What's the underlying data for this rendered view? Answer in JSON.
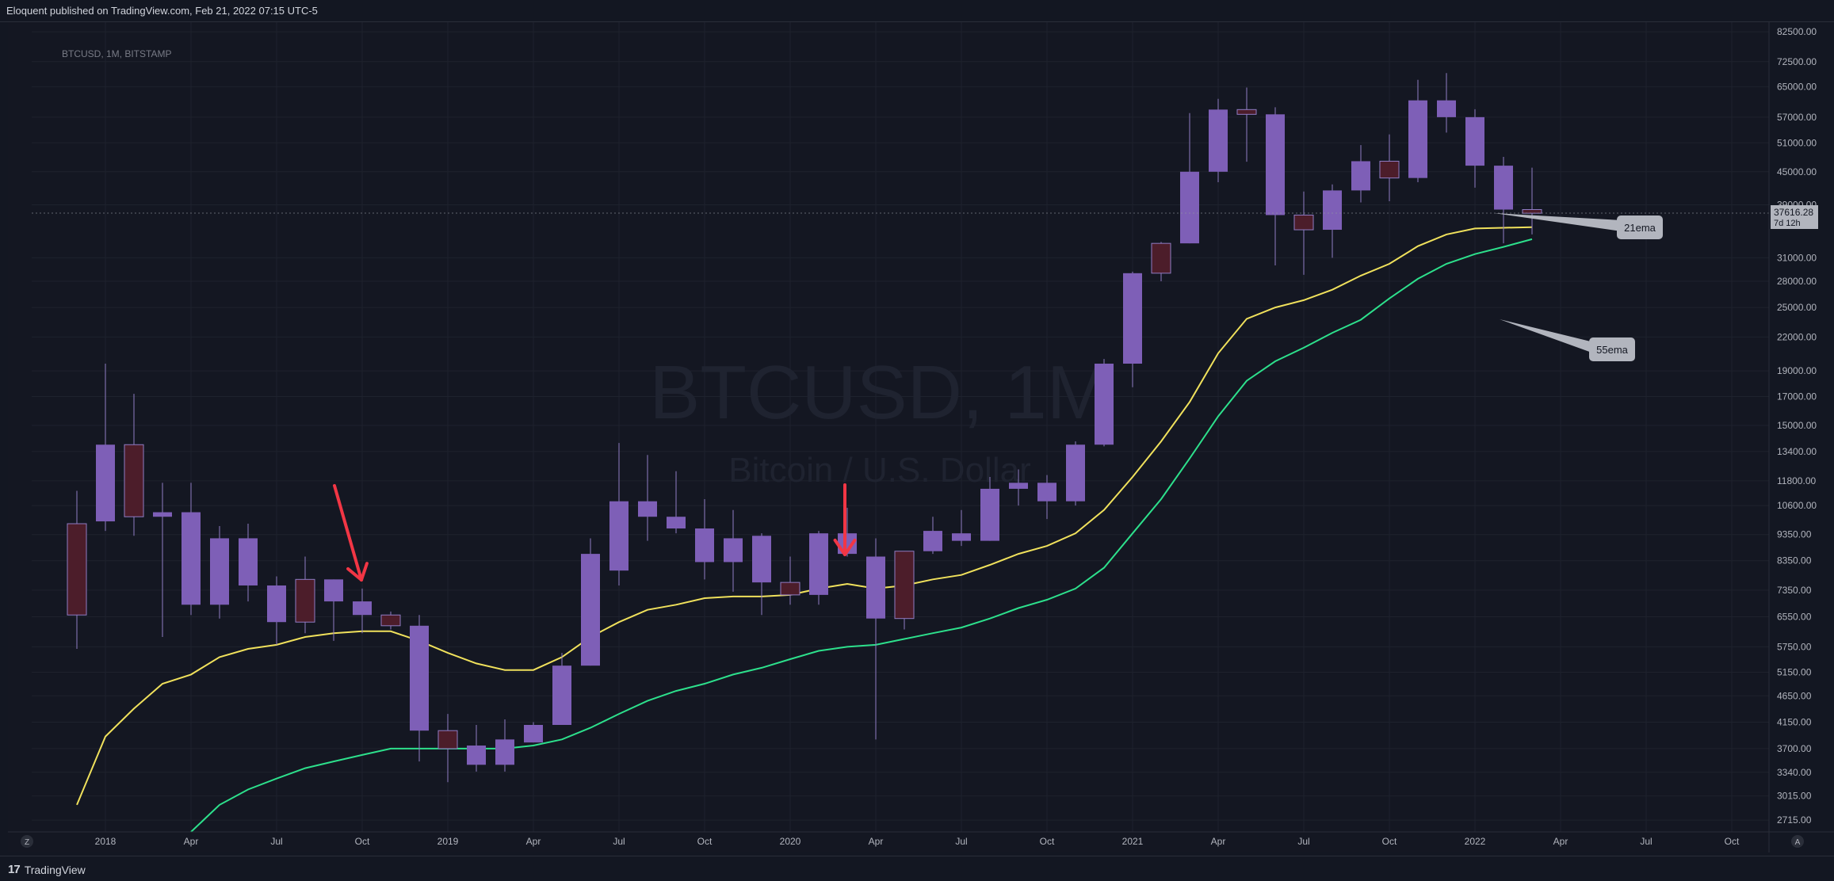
{
  "header": {
    "published": "Eloquent published on TradingView.com, Feb 21, 2022 07:15 UTC-5"
  },
  "footer": {
    "brand": "TradingView"
  },
  "chart_data": {
    "type": "candlestick",
    "symbol_info": "BTCUSD, 1M, BITSTAMP",
    "watermark_line1": "BTCUSD, 1M",
    "watermark_line2": "Bitcoin / U.S. Dollar",
    "y_scale": "log",
    "ylim": [
      2580,
      86000
    ],
    "y_ticks": [
      "82500.00",
      "72500.00",
      "65000.00",
      "57000.00",
      "51000.00",
      "45000.00",
      "39000.00",
      "31000.00",
      "28000.00",
      "25000.00",
      "22000.00",
      "19000.00",
      "17000.00",
      "15000.00",
      "13400.00",
      "11800.00",
      "10600.00",
      "9350.00",
      "8350.00",
      "7350.00",
      "6550.00",
      "5750.00",
      "5150.00",
      "4650.00",
      "4150.00",
      "3700.00",
      "3340.00",
      "3015.00",
      "2715.00"
    ],
    "x_ticks": [
      "2018",
      "Apr",
      "Jul",
      "Oct",
      "2019",
      "Apr",
      "Jul",
      "Oct",
      "2020",
      "Apr",
      "Jul",
      "Oct",
      "2021",
      "Apr",
      "Jul",
      "Oct",
      "2022",
      "Apr",
      "Jul",
      "Oct"
    ],
    "x_tick_months": [
      0,
      3,
      6,
      9,
      12,
      15,
      18,
      21,
      24,
      27,
      30,
      33,
      36,
      39,
      42,
      45,
      48,
      51,
      54,
      57
    ],
    "candles": [
      {
        "m": -1,
        "o": 9800,
        "h": 11300,
        "l": 5700,
        "c": 6600
      },
      {
        "m": 0,
        "o": 9900,
        "h": 19600,
        "l": 9500,
        "c": 13800
      },
      {
        "m": 1,
        "o": 13800,
        "h": 17200,
        "l": 9300,
        "c": 10100
      },
      {
        "m": 2,
        "o": 10100,
        "h": 11700,
        "l": 6000,
        "c": 10300
      },
      {
        "m": 3,
        "o": 6900,
        "h": 11700,
        "l": 6600,
        "c": 10300
      },
      {
        "m": 4,
        "o": 6900,
        "h": 9700,
        "l": 6500,
        "c": 9200
      },
      {
        "m": 5,
        "o": 7500,
        "h": 9800,
        "l": 7000,
        "c": 9200
      },
      {
        "m": 6,
        "o": 6400,
        "h": 7800,
        "l": 5800,
        "c": 7500
      },
      {
        "m": 7,
        "o": 7700,
        "h": 8500,
        "l": 6100,
        "c": 6400
      },
      {
        "m": 8,
        "o": 7000,
        "h": 7700,
        "l": 5900,
        "c": 7700
      },
      {
        "m": 9,
        "o": 6600,
        "h": 7400,
        "l": 6100,
        "c": 7000
      },
      {
        "m": 10,
        "o": 6600,
        "h": 6700,
        "l": 6200,
        "c": 6300
      },
      {
        "m": 11,
        "o": 4000,
        "h": 6600,
        "l": 3500,
        "c": 6300
      },
      {
        "m": 12,
        "o": 4000,
        "h": 4300,
        "l": 3200,
        "c": 3700
      },
      {
        "m": 13,
        "o": 3450,
        "h": 4100,
        "l": 3350,
        "c": 3750
      },
      {
        "m": 14,
        "o": 3450,
        "h": 4200,
        "l": 3350,
        "c": 3850
      },
      {
        "m": 15,
        "o": 3800,
        "h": 4150,
        "l": 3800,
        "c": 4100
      },
      {
        "m": 16,
        "o": 4100,
        "h": 5600,
        "l": 4100,
        "c": 5300
      },
      {
        "m": 17,
        "o": 5300,
        "h": 9200,
        "l": 5300,
        "c": 8600
      },
      {
        "m": 18,
        "o": 8000,
        "h": 13900,
        "l": 7500,
        "c": 10800
      },
      {
        "m": 19,
        "o": 10100,
        "h": 13200,
        "l": 9100,
        "c": 10800
      },
      {
        "m": 20,
        "o": 9600,
        "h": 12300,
        "l": 9400,
        "c": 10100
      },
      {
        "m": 21,
        "o": 8300,
        "h": 10900,
        "l": 7700,
        "c": 9600
      },
      {
        "m": 22,
        "o": 8300,
        "h": 10400,
        "l": 7300,
        "c": 9200
      },
      {
        "m": 23,
        "o": 7600,
        "h": 9400,
        "l": 6600,
        "c": 9300
      },
      {
        "m": 24,
        "o": 7600,
        "h": 8500,
        "l": 6900,
        "c": 7200
      },
      {
        "m": 25,
        "o": 7200,
        "h": 9500,
        "l": 6900,
        "c": 9400
      },
      {
        "m": 26,
        "o": 8600,
        "h": 10500,
        "l": 8500,
        "c": 9400
      },
      {
        "m": 27,
        "o": 6500,
        "h": 9200,
        "l": 3850,
        "c": 8500
      },
      {
        "m": 28,
        "o": 8700,
        "h": 8700,
        "l": 6200,
        "c": 6500
      },
      {
        "m": 29,
        "o": 8700,
        "h": 10100,
        "l": 8600,
        "c": 9500
      },
      {
        "m": 30,
        "o": 9100,
        "h": 10400,
        "l": 8900,
        "c": 9400
      },
      {
        "m": 31,
        "o": 9100,
        "h": 12000,
        "l": 9100,
        "c": 11400
      },
      {
        "m": 32,
        "o": 11400,
        "h": 12400,
        "l": 10600,
        "c": 11700
      },
      {
        "m": 33,
        "o": 10800,
        "h": 12100,
        "l": 10000,
        "c": 11700
      },
      {
        "m": 34,
        "o": 10800,
        "h": 14000,
        "l": 10600,
        "c": 13800
      },
      {
        "m": 35,
        "o": 13800,
        "h": 20000,
        "l": 13700,
        "c": 19600
      },
      {
        "m": 36,
        "o": 19600,
        "h": 29200,
        "l": 17700,
        "c": 29000
      },
      {
        "m": 37,
        "o": 33000,
        "h": 33200,
        "l": 28000,
        "c": 29000
      },
      {
        "m": 38,
        "o": 33000,
        "h": 58000,
        "l": 33000,
        "c": 45000
      },
      {
        "m": 39,
        "o": 45000,
        "h": 61700,
        "l": 43000,
        "c": 58900
      },
      {
        "m": 40,
        "o": 58900,
        "h": 64800,
        "l": 47000,
        "c": 57700
      },
      {
        "m": 41,
        "o": 37300,
        "h": 59500,
        "l": 30000,
        "c": 57700
      },
      {
        "m": 42,
        "o": 37300,
        "h": 41300,
        "l": 28800,
        "c": 35000
      },
      {
        "m": 43,
        "o": 35000,
        "h": 42600,
        "l": 31000,
        "c": 41500
      },
      {
        "m": 44,
        "o": 41500,
        "h": 50500,
        "l": 39400,
        "c": 47100
      },
      {
        "m": 45,
        "o": 47100,
        "h": 52900,
        "l": 39600,
        "c": 43800
      },
      {
        "m": 46,
        "o": 43800,
        "h": 67000,
        "l": 43000,
        "c": 61300
      },
      {
        "m": 47,
        "o": 57000,
        "h": 69000,
        "l": 53300,
        "c": 61300
      },
      {
        "m": 48,
        "o": 46200,
        "h": 59000,
        "l": 42000,
        "c": 57000
      },
      {
        "m": 49,
        "o": 38200,
        "h": 48000,
        "l": 33000,
        "c": 46200
      },
      {
        "m": 50,
        "o": 38200,
        "h": 45800,
        "l": 34300,
        "c": 37600
      }
    ],
    "series": [
      {
        "name": "21ema",
        "color": "#f0e15c",
        "points": [
          [
            -1,
            2900
          ],
          [
            0,
            3900
          ],
          [
            1,
            4400
          ],
          [
            2,
            4900
          ],
          [
            3,
            5100
          ],
          [
            4,
            5500
          ],
          [
            5,
            5700
          ],
          [
            6,
            5800
          ],
          [
            7,
            6000
          ],
          [
            8,
            6100
          ],
          [
            9,
            6150
          ],
          [
            10,
            6150
          ],
          [
            11,
            5900
          ],
          [
            12,
            5600
          ],
          [
            13,
            5350
          ],
          [
            14,
            5200
          ],
          [
            15,
            5200
          ],
          [
            16,
            5500
          ],
          [
            17,
            6000
          ],
          [
            18,
            6400
          ],
          [
            19,
            6750
          ],
          [
            20,
            6900
          ],
          [
            21,
            7100
          ],
          [
            22,
            7150
          ],
          [
            23,
            7150
          ],
          [
            24,
            7200
          ],
          [
            25,
            7400
          ],
          [
            26,
            7550
          ],
          [
            27,
            7400
          ],
          [
            28,
            7500
          ],
          [
            29,
            7700
          ],
          [
            30,
            7850
          ],
          [
            31,
            8200
          ],
          [
            32,
            8600
          ],
          [
            33,
            8900
          ],
          [
            34,
            9400
          ],
          [
            35,
            10400
          ],
          [
            36,
            12000
          ],
          [
            37,
            14000
          ],
          [
            38,
            16600
          ],
          [
            39,
            20500
          ],
          [
            40,
            23800
          ],
          [
            41,
            25000
          ],
          [
            42,
            25800
          ],
          [
            43,
            27000
          ],
          [
            44,
            28700
          ],
          [
            45,
            30200
          ],
          [
            46,
            32600
          ],
          [
            47,
            34300
          ],
          [
            48,
            35200
          ],
          [
            49,
            35300
          ],
          [
            50,
            35400
          ]
        ]
      },
      {
        "name": "55ema",
        "color": "#2de08c",
        "points": [
          [
            3,
            2580
          ],
          [
            4,
            2900
          ],
          [
            5,
            3100
          ],
          [
            6,
            3250
          ],
          [
            7,
            3400
          ],
          [
            8,
            3500
          ],
          [
            9,
            3600
          ],
          [
            10,
            3700
          ],
          [
            11,
            3700
          ],
          [
            12,
            3700
          ],
          [
            13,
            3700
          ],
          [
            14,
            3700
          ],
          [
            15,
            3750
          ],
          [
            16,
            3850
          ],
          [
            17,
            4050
          ],
          [
            18,
            4300
          ],
          [
            19,
            4550
          ],
          [
            20,
            4750
          ],
          [
            21,
            4900
          ],
          [
            22,
            5100
          ],
          [
            23,
            5250
          ],
          [
            24,
            5450
          ],
          [
            25,
            5650
          ],
          [
            26,
            5750
          ],
          [
            27,
            5800
          ],
          [
            28,
            5950
          ],
          [
            29,
            6100
          ],
          [
            30,
            6250
          ],
          [
            31,
            6500
          ],
          [
            32,
            6800
          ],
          [
            33,
            7050
          ],
          [
            34,
            7400
          ],
          [
            35,
            8100
          ],
          [
            36,
            9400
          ],
          [
            37,
            10900
          ],
          [
            38,
            13000
          ],
          [
            39,
            15600
          ],
          [
            40,
            18200
          ],
          [
            41,
            19800
          ],
          [
            42,
            21000
          ],
          [
            43,
            22400
          ],
          [
            44,
            23700
          ],
          [
            45,
            26000
          ],
          [
            46,
            28300
          ],
          [
            47,
            30200
          ],
          [
            48,
            31500
          ],
          [
            49,
            32500
          ],
          [
            50,
            33600
          ]
        ]
      }
    ],
    "last_price": "37616.28",
    "countdown": "7d 12h",
    "annotations": [
      {
        "type": "callout",
        "text": "21ema"
      },
      {
        "type": "callout",
        "text": "55ema"
      },
      {
        "type": "arrow",
        "color": "#f23645"
      },
      {
        "type": "arrow",
        "color": "#f23645"
      }
    ],
    "axis_corner_left": "Z",
    "axis_corner_right": "A",
    "colors": {
      "up": "#7e5fb7",
      "down": "#4c1d2a",
      "background": "#141722",
      "grid": "#1e222d"
    }
  }
}
